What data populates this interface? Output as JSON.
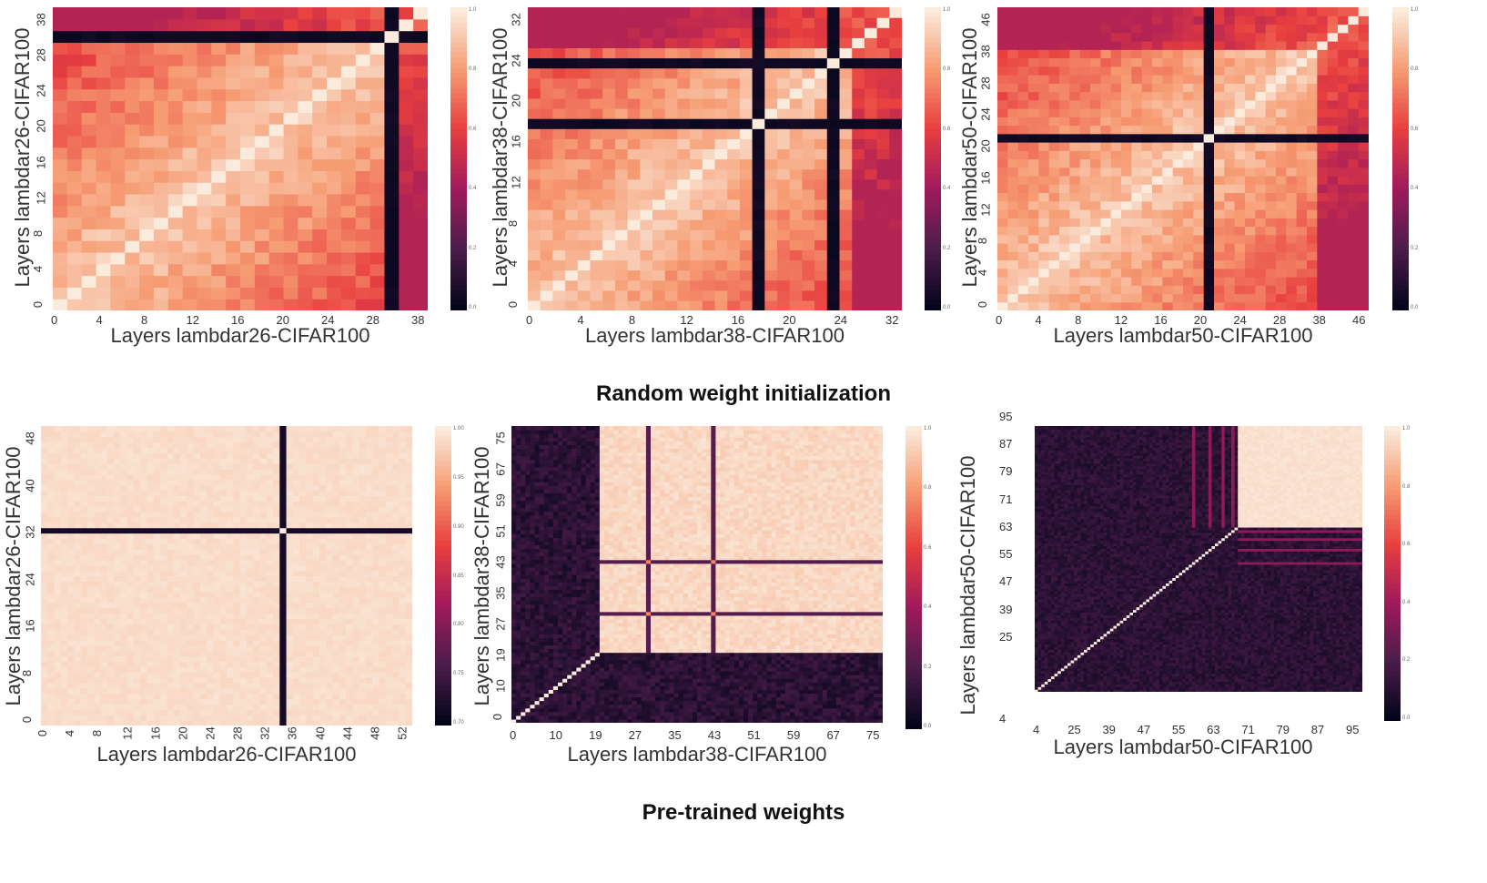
{
  "captions": {
    "top": "Random weight initialization",
    "bottom": "Pre-trained weights"
  },
  "colors": {
    "colormap": [
      "#03051a",
      "#4c1d4b",
      "#a11a5b",
      "#e83f3f",
      "#f69c73",
      "#faebdd"
    ]
  },
  "chart_data": [
    {
      "type": "heatmap",
      "id": "p1",
      "xlabel": "Layers lambdar26-CIFAR100",
      "ylabel": "Layers lambdar26-CIFAR100",
      "x_ticks": [
        "0",
        "4",
        "8",
        "12",
        "16",
        "20",
        "24",
        "28",
        "38"
      ],
      "y_ticks": [
        "0",
        "4",
        "8",
        "12",
        "16",
        "20",
        "24",
        "28",
        "38"
      ],
      "n": 26,
      "dark_rows_cols": [
        23
      ],
      "colorbar_ticks": [
        "1.0",
        "0.8",
        "0.6",
        "0.4",
        "0.2",
        "0.0"
      ],
      "range": [
        0.0,
        1.0
      ]
    },
    {
      "type": "heatmap",
      "id": "p2",
      "xlabel": "Layers lambdar38-CIFAR100",
      "ylabel": "Layers lambdar38-CIFAR100",
      "x_ticks": [
        "0",
        "4",
        "8",
        "12",
        "16",
        "20",
        "24",
        "32"
      ],
      "y_ticks": [
        "0",
        "4",
        "8",
        "12",
        "16",
        "20",
        "24",
        "32"
      ],
      "n": 30,
      "dark_rows_cols": [
        18,
        24
      ],
      "colorbar_ticks": [
        "1.0",
        "0.8",
        "0.6",
        "0.4",
        "0.2",
        "0.0"
      ],
      "range": [
        0.0,
        1.0
      ]
    },
    {
      "type": "heatmap",
      "id": "p3",
      "xlabel": "Layers lambdar50-CIFAR100",
      "ylabel": "Layers lambdar50-CIFAR100",
      "x_ticks": [
        "0",
        "4",
        "8",
        "12",
        "16",
        "20",
        "24",
        "28",
        "38",
        "46"
      ],
      "y_ticks": [
        "0",
        "4",
        "8",
        "12",
        "16",
        "20",
        "24",
        "28",
        "38",
        "46"
      ],
      "n": 36,
      "dark_rows_cols": [
        20
      ],
      "colorbar_ticks": [
        "1.0",
        "0.8",
        "0.6",
        "0.4",
        "0.2",
        "0.0"
      ],
      "range": [
        0.0,
        1.0
      ]
    },
    {
      "type": "heatmap",
      "id": "p4",
      "xlabel": "Layers lambdar26-CIFAR100",
      "ylabel": "Layers lambdar26-CIFAR100",
      "x_ticks": [
        "0",
        "4",
        "8",
        "12",
        "16",
        "20",
        "24",
        "28",
        "32",
        "36",
        "40",
        "44",
        "48",
        "52"
      ],
      "y_ticks": [
        "0",
        "8",
        "16",
        "24",
        "32",
        "40",
        "48"
      ],
      "n": 56,
      "dark_rows_cols": [
        36
      ],
      "colorbar_ticks": [
        "1.00",
        "0.95",
        "0.90",
        "0.85",
        "0.80",
        "0.75",
        "0.70"
      ],
      "range": [
        0.7,
        1.0
      ]
    },
    {
      "type": "heatmap",
      "id": "p5",
      "xlabel": "Layers lambdar38-CIFAR100",
      "ylabel": "Layers lambdar38-CIFAR100",
      "x_ticks": [
        "0",
        "10",
        "19",
        "27",
        "35",
        "43",
        "51",
        "59",
        "67",
        "75"
      ],
      "y_ticks": [
        "0",
        "10",
        "19",
        "27",
        "35",
        "43",
        "51",
        "59",
        "67",
        "75"
      ],
      "n": 80,
      "colorbar_ticks": [
        "1.0",
        "0.8",
        "0.6",
        "0.4",
        "0.2",
        "0.0"
      ],
      "range": [
        0.0,
        1.0
      ]
    },
    {
      "type": "heatmap",
      "id": "p6",
      "xlabel": "Layers lambdar50-CIFAR100",
      "ylabel": "Layers lambdar50-CIFAR100",
      "x_ticks": [
        "4",
        "25",
        "39",
        "47",
        "55",
        "63",
        "71",
        "79",
        "87",
        "95"
      ],
      "y_ticks": [
        "4",
        "25",
        "39",
        "47",
        "55",
        "63",
        "71",
        "79",
        "87",
        "95"
      ],
      "n": 100,
      "colorbar_ticks": [
        "1.0",
        "0.8",
        "0.6",
        "0.4",
        "0.2",
        "0.0"
      ],
      "range": [
        0.0,
        1.0
      ]
    }
  ]
}
